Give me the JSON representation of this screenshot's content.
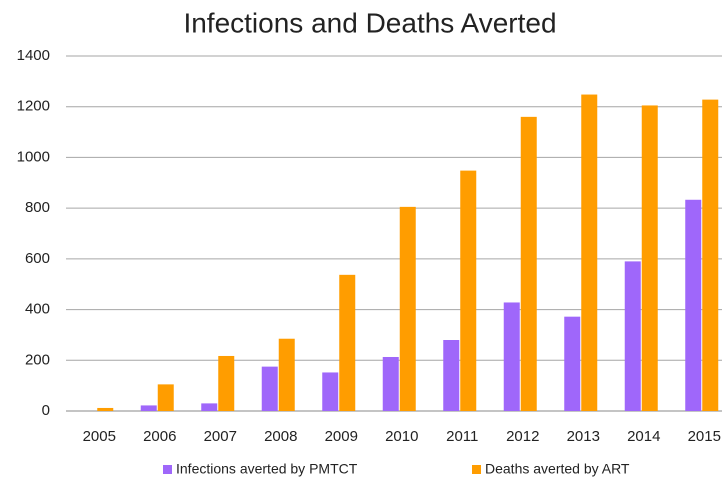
{
  "chart_data": {
    "type": "bar",
    "title": "Infections and Deaths Averted",
    "categories": [
      "2005",
      "2006",
      "2007",
      "2008",
      "2009",
      "2010",
      "2011",
      "2012",
      "2013",
      "2014",
      "2015"
    ],
    "series": [
      {
        "name": "Infections averted by PMTCT",
        "color": "#9f67fa",
        "values": [
          0,
          22,
          30,
          175,
          152,
          213,
          280,
          428,
          372,
          590,
          833
        ]
      },
      {
        "name": "Deaths averted by ART",
        "color": "#ff9d00",
        "values": [
          12,
          105,
          217,
          285,
          537,
          805,
          948,
          1160,
          1248,
          1205,
          1228
        ]
      }
    ],
    "ylim": [
      0,
      1400
    ],
    "yticks": [
      0,
      200,
      400,
      600,
      800,
      1000,
      1200,
      1400
    ],
    "grid": true,
    "legend": "bottom"
  }
}
